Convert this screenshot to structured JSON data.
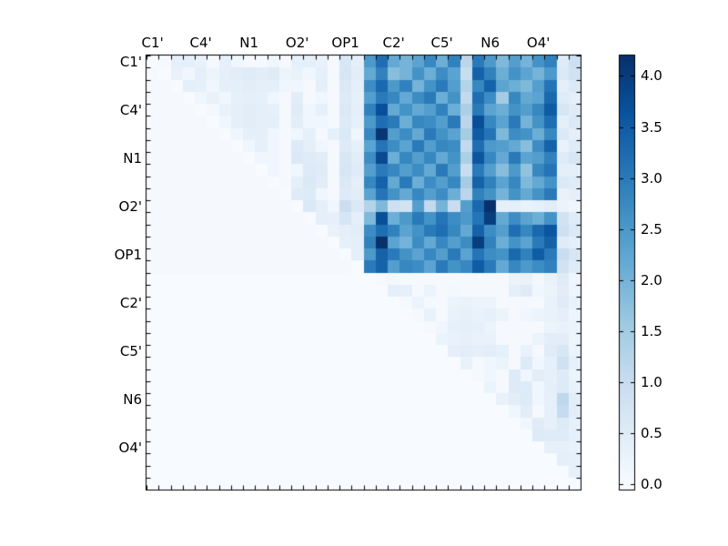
{
  "chart_data": {
    "type": "heatmap",
    "x_tick_labels": [
      "C1'",
      "C4'",
      "N1",
      "O2'",
      "OP1",
      "C2'",
      "C5'",
      "N6",
      "O4'"
    ],
    "y_tick_labels": [
      "C1'",
      "C4'",
      "N1",
      "O2'",
      "OP1",
      "C2'",
      "C5'",
      "N6",
      "O4'"
    ],
    "grid_size": 36,
    "label_step": 4,
    "vmin": 0,
    "vmax": 4.2,
    "colorbar_tick_values": [
      0,
      0.5,
      1,
      1.5,
      2,
      2.5,
      3,
      3.5,
      4
    ],
    "colorbar_tick_labels": [
      "0.0",
      "0.5",
      "1.0",
      "1.5",
      "2.0",
      "2.5",
      "3.0",
      "3.5",
      "4.0"
    ],
    "colormap": "Blues",
    "colormap_stops": [
      [
        0,
        "#f7fbff"
      ],
      [
        0.125,
        "#deebf7"
      ],
      [
        0.25,
        "#c6dbef"
      ],
      [
        0.375,
        "#9ecae1"
      ],
      [
        0.5,
        "#6baed6"
      ],
      [
        0.625,
        "#4292c6"
      ],
      [
        0.75,
        "#2171b5"
      ],
      [
        0.875,
        "#08519c"
      ],
      [
        1,
        "#08306b"
      ]
    ],
    "axis_color": "#000000",
    "background_color": "#ffffff",
    "matrix": [
      [
        0,
        0.05,
        0.35,
        0.4,
        0.3,
        0.05,
        0.35,
        0.15,
        0.05,
        0.05,
        0.15,
        0.05,
        0.35,
        0.4,
        0.3,
        0.05,
        0.65,
        0.4,
        2.5,
        3.2,
        2.2,
        2.0,
        2.3,
        2.8,
        2.1,
        2.9,
        1.2,
        3.0,
        2.5,
        1.9,
        2.4,
        2.0,
        2.6,
        2.9,
        0.5,
        0.9
      ],
      [
        0.05,
        0,
        0.3,
        0.15,
        0.4,
        0.2,
        0.4,
        0.45,
        0.5,
        0.45,
        0.5,
        0.2,
        0.3,
        0.15,
        0.35,
        0.05,
        0.7,
        0.45,
        2.2,
        2.9,
        1.8,
        2.0,
        2.6,
        2.1,
        2.7,
        2.3,
        1.0,
        3.4,
        2.9,
        2.1,
        2.6,
        2.3,
        2.0,
        2.5,
        0.6,
        0.8
      ],
      [
        0.05,
        0.05,
        0,
        0.4,
        0.35,
        0.15,
        0.4,
        0.4,
        0.45,
        0.4,
        0.4,
        0.15,
        0.15,
        0.05,
        0.4,
        0.05,
        0.6,
        0.4,
        2.7,
        3.3,
        2.5,
        2.9,
        2.0,
        2.6,
        3.0,
        2.4,
        1.3,
        2.8,
        3.4,
        2.3,
        2.1,
        1.9,
        2.4,
        3.1,
        0.4,
        0.6
      ],
      [
        0.05,
        0.05,
        0.05,
        0,
        0.15,
        0.3,
        0.15,
        0.35,
        0.4,
        0.35,
        0.15,
        0.05,
        0.45,
        0.05,
        0.15,
        0.05,
        0.55,
        0.35,
        2.4,
        3.0,
        2.8,
        2.2,
        2.7,
        3.0,
        2.1,
        2.6,
        1.1,
        3.2,
        2.7,
        1.5,
        2.8,
        2.2,
        2.3,
        3.3,
        0.5,
        0.4
      ],
      [
        0.05,
        0.05,
        0.05,
        0.05,
        0,
        0.1,
        0.3,
        0.4,
        0.45,
        0.4,
        0.35,
        0.05,
        0.5,
        0.15,
        0.35,
        0.05,
        0.6,
        0.4,
        2.9,
        3.7,
        2.2,
        2.6,
        2.2,
        2.4,
        2.9,
        2.1,
        1.4,
        3.0,
        2.3,
        2.1,
        2.6,
        2.4,
        2.8,
        3.5,
        0.7,
        0.5
      ],
      [
        0.05,
        0.05,
        0.05,
        0.05,
        0.05,
        0,
        0.15,
        0.4,
        0.45,
        0.4,
        0.4,
        0.05,
        0.45,
        0.15,
        0.15,
        0.05,
        0.55,
        0.35,
        2.5,
        3.2,
        3.0,
        2.1,
        2.8,
        2.7,
        2.4,
        3.0,
        1.2,
        3.7,
        2.8,
        2.3,
        3.0,
        2.0,
        2.6,
        3.2,
        0.4,
        0.6
      ],
      [
        0.05,
        0.05,
        0.05,
        0.05,
        0.05,
        0.05,
        0,
        0.15,
        0.35,
        0.4,
        0.15,
        0.05,
        0.15,
        0.35,
        0.05,
        0.35,
        0.6,
        0.15,
        2.8,
        4.1,
        2.4,
        2.7,
        2.2,
        3.0,
        2.6,
        2.3,
        1.5,
        3.5,
        3.1,
        1.9,
        2.7,
        2.6,
        2.1,
        2.8,
        0.6,
        0.4
      ],
      [
        0.05,
        0.05,
        0.05,
        0.05,
        0.05,
        0.05,
        0.05,
        0,
        0.15,
        0.35,
        0.15,
        0.05,
        0.55,
        0.4,
        0.15,
        0.05,
        0.55,
        0.35,
        2.3,
        3.1,
        2.7,
        2.3,
        3.0,
        2.4,
        2.8,
        2.7,
        1.1,
        3.2,
        2.5,
        2.4,
        2.2,
        1.8,
        2.7,
        3.4,
        0.3,
        0.5
      ],
      [
        0.05,
        0.05,
        0.05,
        0.05,
        0.05,
        0.05,
        0.05,
        0.05,
        0,
        0.15,
        0.15,
        0.05,
        0.6,
        0.5,
        0.45,
        0.05,
        0.65,
        0.45,
        2.7,
        3.8,
        2.1,
        2.8,
        2.4,
        2.8,
        2.2,
        2.6,
        1.4,
        3.6,
        2.8,
        2.2,
        3.0,
        2.3,
        2.4,
        2.9,
        0.5,
        0.7
      ],
      [
        0.05,
        0.05,
        0.05,
        0.05,
        0.05,
        0.05,
        0.05,
        0.05,
        0.05,
        0,
        0.15,
        0.05,
        0.15,
        0.55,
        0.5,
        0.05,
        0.7,
        0.5,
        2.4,
        3.0,
        2.8,
        2.4,
        2.7,
        2.2,
        3.0,
        2.4,
        1.0,
        3.0,
        2.4,
        1.8,
        2.5,
        1.7,
        2.8,
        3.1,
        0.4,
        0.4
      ],
      [
        0.05,
        0.05,
        0.05,
        0.05,
        0.05,
        0.05,
        0.05,
        0.05,
        0.05,
        0.05,
        0,
        0.05,
        0.4,
        0.6,
        0.45,
        0.05,
        0.6,
        0.4,
        2.8,
        3.4,
        2.2,
        3.0,
        2.1,
        2.7,
        2.4,
        2.8,
        1.5,
        3.4,
        2.9,
        2.3,
        2.8,
        1.9,
        2.2,
        2.6,
        0.6,
        0.5
      ],
      [
        0.05,
        0.05,
        0.05,
        0.05,
        0.05,
        0.05,
        0.05,
        0.05,
        0.05,
        0.05,
        0.05,
        0,
        0.5,
        0.55,
        0.15,
        0.05,
        0.55,
        0.45,
        2.3,
        3.1,
        2.6,
        2.2,
        2.8,
        2.4,
        2.7,
        2.1,
        1.2,
        2.9,
        2.6,
        2.0,
        2.6,
        2.2,
        2.6,
        3.0,
        0.3,
        0.4
      ],
      [
        0.05,
        0.05,
        0.05,
        0.05,
        0.05,
        0.05,
        0.05,
        0.05,
        0.05,
        0.05,
        0.05,
        0.05,
        0,
        0.6,
        0.4,
        0.15,
        0.95,
        0.6,
        1.3,
        1.9,
        0.9,
        0.8,
        2.4,
        1.1,
        2.0,
        1.0,
        2.4,
        3.3,
        4.2,
        0.35,
        0.4,
        0.3,
        0.35,
        0.45,
        0.25,
        0.15
      ],
      [
        0.05,
        0.05,
        0.05,
        0.05,
        0.05,
        0.05,
        0.05,
        0.05,
        0.05,
        0.05,
        0.05,
        0.05,
        0.05,
        0,
        0.4,
        0.35,
        0.7,
        0.4,
        1.9,
        3.7,
        2.1,
        2.5,
        3.0,
        2.6,
        3.1,
        2.7,
        2.5,
        3.1,
        4.0,
        2.2,
        2.7,
        2.3,
        2.1,
        2.6,
        0.8,
        0.5
      ],
      [
        0.05,
        0.05,
        0.05,
        0.05,
        0.05,
        0.05,
        0.05,
        0.05,
        0.05,
        0.05,
        0.05,
        0.05,
        0.05,
        0.05,
        0,
        0.3,
        0.4,
        0.45,
        2.7,
        3.2,
        2.9,
        2.3,
        2.6,
        3.0,
        3.2,
        2.8,
        2.2,
        3.4,
        2.7,
        2.4,
        3.2,
        2.8,
        3.3,
        3.6,
        0.9,
        0.6
      ],
      [
        0.05,
        0.05,
        0.05,
        0.05,
        0.05,
        0.05,
        0.05,
        0.05,
        0.05,
        0.05,
        0.05,
        0.05,
        0.05,
        0.05,
        0.05,
        0,
        0.35,
        0.4,
        2.9,
        4.3,
        2.3,
        2.0,
        2.7,
        2.2,
        2.8,
        2.4,
        2.7,
        4.0,
        2.9,
        2.1,
        2.6,
        2.3,
        3.0,
        3.4,
        0.5,
        0.4
      ],
      [
        0.05,
        0.05,
        0.05,
        0.05,
        0.05,
        0.05,
        0.05,
        0.05,
        0.05,
        0.05,
        0.05,
        0.05,
        0.05,
        0.05,
        0.05,
        0.05,
        0,
        0.4,
        2.5,
        3.4,
        3.0,
        2.6,
        2.3,
        2.8,
        2.4,
        3.0,
        2.3,
        3.1,
        2.7,
        2.6,
        3.3,
        2.9,
        3.5,
        3.0,
        1.0,
        0.7
      ],
      [
        0.05,
        0.05,
        0.05,
        0.05,
        0.05,
        0.05,
        0.05,
        0.05,
        0.05,
        0.05,
        0.05,
        0.05,
        0.05,
        0.05,
        0.05,
        0.05,
        0.05,
        0,
        3.0,
        3.4,
        2.4,
        2.8,
        2.7,
        2.3,
        3.0,
        2.6,
        2.8,
        3.5,
        3.0,
        2.2,
        2.8,
        2.5,
        2.7,
        2.9,
        0.8,
        0.5
      ],
      [
        0,
        0,
        0,
        0,
        0,
        0,
        0,
        0,
        0,
        0,
        0,
        0,
        0,
        0,
        0,
        0,
        0,
        0,
        0,
        0.05,
        0.1,
        0.05,
        0.05,
        0.05,
        0.05,
        0.05,
        0.05,
        0.05,
        0.05,
        0.05,
        0.25,
        0.3,
        0.1,
        0.3,
        0.5,
        0.15
      ],
      [
        0,
        0,
        0,
        0,
        0,
        0,
        0,
        0,
        0,
        0,
        0,
        0,
        0,
        0,
        0,
        0,
        0,
        0,
        0,
        0,
        0.4,
        0.35,
        0.05,
        0.25,
        0.05,
        0.1,
        0.05,
        0.05,
        0.05,
        0.05,
        0.4,
        0.5,
        0.15,
        0.25,
        0.45,
        0.2
      ],
      [
        0,
        0,
        0,
        0,
        0,
        0,
        0,
        0,
        0,
        0,
        0,
        0,
        0,
        0,
        0,
        0,
        0,
        0,
        0,
        0,
        0,
        0.05,
        0.25,
        0.05,
        0.05,
        0.25,
        0.3,
        0.25,
        0.25,
        0.05,
        0.05,
        0.1,
        0.05,
        0.3,
        0.5,
        0.3
      ],
      [
        0,
        0,
        0,
        0,
        0,
        0,
        0,
        0,
        0,
        0,
        0,
        0,
        0,
        0,
        0,
        0,
        0,
        0,
        0,
        0,
        0,
        0,
        0.05,
        0.3,
        0.05,
        0.3,
        0.35,
        0.3,
        0.35,
        0.25,
        0.05,
        0.15,
        0.25,
        0.3,
        0.4,
        0.2
      ],
      [
        0,
        0,
        0,
        0,
        0,
        0,
        0,
        0,
        0,
        0,
        0,
        0,
        0,
        0,
        0,
        0,
        0,
        0,
        0,
        0,
        0,
        0,
        0,
        0.05,
        0.15,
        0.35,
        0.4,
        0.35,
        0.25,
        0.05,
        0.05,
        0.05,
        0.05,
        0.25,
        0.3,
        0.25
      ],
      [
        0,
        0,
        0,
        0,
        0,
        0,
        0,
        0,
        0,
        0,
        0,
        0,
        0,
        0,
        0,
        0,
        0,
        0,
        0,
        0,
        0,
        0,
        0,
        0,
        0.25,
        0.3,
        0.35,
        0.3,
        0.3,
        0.05,
        0.05,
        0.05,
        0.25,
        0.45,
        0.45,
        0.2
      ],
      [
        0,
        0,
        0,
        0,
        0,
        0,
        0,
        0,
        0,
        0,
        0,
        0,
        0,
        0,
        0,
        0,
        0,
        0,
        0,
        0,
        0,
        0,
        0,
        0,
        0,
        0.4,
        0.45,
        0.4,
        0.45,
        0.35,
        0.05,
        0.3,
        0.05,
        0.5,
        0.65,
        0.25
      ],
      [
        0,
        0,
        0,
        0,
        0,
        0,
        0,
        0,
        0,
        0,
        0,
        0,
        0,
        0,
        0,
        0,
        0,
        0,
        0,
        0,
        0,
        0,
        0,
        0,
        0,
        0,
        0.3,
        0.05,
        0.15,
        0.25,
        0.05,
        0.55,
        0.15,
        0.35,
        0.85,
        0.35
      ],
      [
        0,
        0,
        0,
        0,
        0,
        0,
        0,
        0,
        0,
        0,
        0,
        0,
        0,
        0,
        0,
        0,
        0,
        0,
        0,
        0,
        0,
        0,
        0,
        0,
        0,
        0,
        0,
        0.05,
        0.15,
        0.05,
        0.55,
        0.15,
        0.45,
        0.35,
        0.55,
        0.25
      ],
      [
        0,
        0,
        0,
        0,
        0,
        0,
        0,
        0,
        0,
        0,
        0,
        0,
        0,
        0,
        0,
        0,
        0,
        0,
        0,
        0,
        0,
        0,
        0,
        0,
        0,
        0,
        0,
        0,
        0.25,
        0.05,
        0.55,
        0.5,
        0.15,
        0.4,
        0.55,
        0.3
      ],
      [
        0,
        0,
        0,
        0,
        0,
        0,
        0,
        0,
        0,
        0,
        0,
        0,
        0,
        0,
        0,
        0,
        0,
        0,
        0,
        0,
        0,
        0,
        0,
        0,
        0,
        0,
        0,
        0,
        0,
        0.3,
        0.45,
        0.55,
        0.15,
        0.35,
        1.15,
        0.45
      ],
      [
        0,
        0,
        0,
        0,
        0,
        0,
        0,
        0,
        0,
        0,
        0,
        0,
        0,
        0,
        0,
        0,
        0,
        0,
        0,
        0,
        0,
        0,
        0,
        0,
        0,
        0,
        0,
        0,
        0,
        0,
        0.15,
        0.45,
        0.05,
        0.35,
        1.05,
        0.45
      ],
      [
        0,
        0,
        0,
        0,
        0,
        0,
        0,
        0,
        0,
        0,
        0,
        0,
        0,
        0,
        0,
        0,
        0,
        0,
        0,
        0,
        0,
        0,
        0,
        0,
        0,
        0,
        0,
        0,
        0,
        0,
        0,
        0.15,
        0.5,
        0.35,
        0.55,
        0.35
      ],
      [
        0,
        0,
        0,
        0,
        0,
        0,
        0,
        0,
        0,
        0,
        0,
        0,
        0,
        0,
        0,
        0,
        0,
        0,
        0,
        0,
        0,
        0,
        0,
        0,
        0,
        0,
        0,
        0,
        0,
        0,
        0,
        0,
        0.55,
        0.5,
        0.5,
        0.35
      ],
      [
        0,
        0,
        0,
        0,
        0,
        0,
        0,
        0,
        0,
        0,
        0,
        0,
        0,
        0,
        0,
        0,
        0,
        0,
        0,
        0,
        0,
        0,
        0,
        0,
        0,
        0,
        0,
        0,
        0,
        0,
        0,
        0,
        0,
        0.35,
        0.35,
        0.3
      ],
      [
        0,
        0,
        0,
        0,
        0,
        0,
        0,
        0,
        0,
        0,
        0,
        0,
        0,
        0,
        0,
        0,
        0,
        0,
        0,
        0,
        0,
        0,
        0,
        0,
        0,
        0,
        0,
        0,
        0,
        0,
        0,
        0,
        0,
        0,
        0.4,
        0.35
      ],
      [
        0,
        0,
        0,
        0,
        0,
        0,
        0,
        0,
        0,
        0,
        0,
        0,
        0,
        0,
        0,
        0,
        0,
        0,
        0,
        0,
        0,
        0,
        0,
        0,
        0,
        0,
        0,
        0,
        0,
        0,
        0,
        0,
        0,
        0,
        0,
        0.35
      ],
      [
        0,
        0,
        0,
        0,
        0,
        0,
        0,
        0,
        0,
        0,
        0,
        0,
        0,
        0,
        0,
        0,
        0,
        0,
        0,
        0,
        0,
        0,
        0,
        0,
        0,
        0,
        0,
        0,
        0,
        0,
        0,
        0,
        0,
        0,
        0,
        0
      ]
    ]
  }
}
